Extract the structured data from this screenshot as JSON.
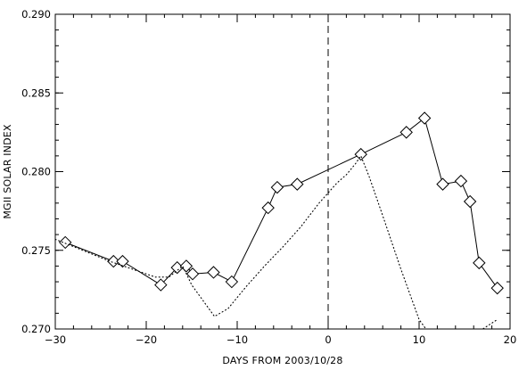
{
  "chart_data": {
    "type": "line",
    "xlabel": "DAYS FROM 2003/10/28",
    "ylabel": "MGII SOLAR INDEX",
    "xlim": [
      -30,
      20
    ],
    "ylim": [
      0.27,
      0.29
    ],
    "x_ticks": [
      -30,
      -20,
      -10,
      0,
      10,
      20
    ],
    "x_tick_labels": [
      "−30",
      "−20",
      "−10",
      "0",
      "10",
      "20"
    ],
    "y_ticks": [
      0.27,
      0.275,
      0.28,
      0.285,
      0.29
    ],
    "y_tick_labels": [
      "0.270",
      "0.275",
      "0.280",
      "0.285",
      "0.290"
    ],
    "grid": false,
    "legend": false,
    "reference_line_x": 0,
    "series": [
      {
        "style": "solid-diamond",
        "x": [
          -28.9,
          -23.6,
          -22.6,
          -18.4,
          -16.6,
          -15.6,
          -14.9,
          -12.6,
          -10.6,
          -6.6,
          -5.6,
          -3.4,
          3.6,
          8.6,
          10.6,
          12.6,
          14.6,
          15.6,
          16.6,
          18.6
        ],
        "y": [
          0.2755,
          0.2743,
          0.2743,
          0.2728,
          0.2739,
          0.274,
          0.2735,
          0.2736,
          0.273,
          0.2777,
          0.279,
          0.2792,
          0.2811,
          0.2825,
          0.2834,
          0.2792,
          0.2794,
          0.2781,
          0.2742,
          0.2726
        ]
      },
      {
        "style": "dotted",
        "x": [
          -30,
          -27,
          -24,
          -21,
          -19,
          -17.5,
          -16,
          -15,
          -14,
          -13,
          -12.5,
          -11,
          -9,
          -7,
          -5,
          -3,
          -1,
          1,
          2,
          3,
          3.6,
          4.5,
          6,
          8,
          10,
          12,
          13,
          15,
          17,
          18.6
        ],
        "y": [
          0.2757,
          0.275,
          0.2743,
          0.2737,
          0.2733,
          0.2733,
          0.274,
          0.2728,
          0.272,
          0.2712,
          0.2708,
          0.2713,
          0.2727,
          0.274,
          0.2752,
          0.2765,
          0.278,
          0.2793,
          0.2798,
          0.2805,
          0.281,
          0.2797,
          0.2772,
          0.2738,
          0.2706,
          0.269,
          0.2685,
          0.269,
          0.27,
          0.2706
        ]
      }
    ]
  }
}
